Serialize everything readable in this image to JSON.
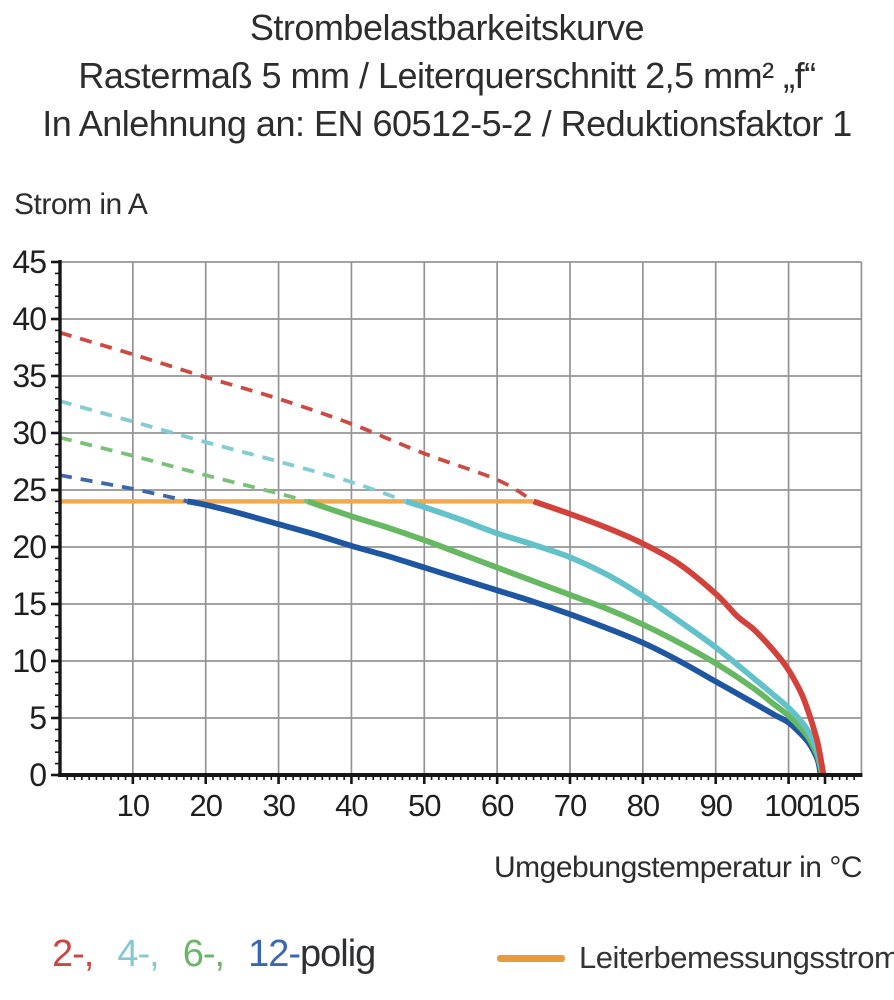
{
  "chart_data": {
    "type": "line",
    "title_lines": [
      "Strombelastbarkeitskurve",
      "Rastermaß 5 mm / Leiterquerschnitt 2,5 mm² „f“",
      "In Anlehnung an: EN 60512-5-2 / Reduktionsfaktor 1"
    ],
    "ylabel": "Strom in A",
    "xlabel": "Umgebungstemperatur in °C",
    "xlim": [
      0,
      110
    ],
    "ylim": [
      0,
      45
    ],
    "xticks": [
      10,
      20,
      30,
      40,
      50,
      60,
      70,
      80,
      90,
      100,
      105
    ],
    "yticks": [
      0,
      5,
      10,
      15,
      20,
      25,
      30,
      35,
      40,
      45
    ],
    "grid_x": [
      10,
      20,
      30,
      40,
      50,
      60,
      70,
      80,
      90,
      100,
      110
    ],
    "grid_y": [
      5,
      10,
      15,
      20,
      25,
      30,
      35,
      40,
      45
    ],
    "grid": true,
    "legend_position": "bottom",
    "colors": {
      "grid": "#949494",
      "axis": "#161616",
      "text": "#1f1f1f"
    },
    "rated_current": {
      "label": "Leiterbemessungsstrom",
      "value": 24,
      "x_start": 0,
      "x_end": 65,
      "color": "#f2a94b",
      "legend_swatch_color": "#e99b3c"
    },
    "series": [
      {
        "name": "2-polig",
        "legend_text": "2-,",
        "legend_color": "#cc4540",
        "color": "#d2423a",
        "dash_color": "#cb4a44",
        "dashed": [
          [
            0,
            38.8
          ],
          [
            10,
            36.9
          ],
          [
            20,
            34.9
          ],
          [
            30,
            33.0
          ],
          [
            40,
            30.8
          ],
          [
            50,
            28.2
          ],
          [
            60,
            25.9
          ],
          [
            65,
            24
          ]
        ],
        "solid": [
          [
            65,
            24
          ],
          [
            70,
            22.9
          ],
          [
            75,
            21.7
          ],
          [
            80,
            20.3
          ],
          [
            85,
            18.5
          ],
          [
            90,
            15.9
          ],
          [
            93,
            13.9
          ],
          [
            95,
            12.9
          ],
          [
            97,
            11.6
          ],
          [
            99,
            10.1
          ],
          [
            100,
            9.2
          ],
          [
            101,
            8.1
          ],
          [
            102,
            6.8
          ],
          [
            103,
            5.0
          ],
          [
            104,
            2.8
          ],
          [
            104.8,
            0
          ]
        ]
      },
      {
        "name": "4-polig",
        "legend_text": "4-,",
        "legend_color": "#85c8d2",
        "color": "#63c1c9",
        "dash_color": "#83ccd4",
        "dashed": [
          [
            0,
            32.8
          ],
          [
            10,
            31.0
          ],
          [
            20,
            29.2
          ],
          [
            30,
            27.5
          ],
          [
            40,
            25.7
          ],
          [
            47.5,
            24
          ]
        ],
        "solid": [
          [
            47.5,
            24
          ],
          [
            50,
            23.5
          ],
          [
            55,
            22.4
          ],
          [
            60,
            21.2
          ],
          [
            65,
            20.2
          ],
          [
            70,
            19.1
          ],
          [
            75,
            17.6
          ],
          [
            80,
            15.7
          ],
          [
            85,
            13.5
          ],
          [
            90,
            11.2
          ],
          [
            95,
            8.6
          ],
          [
            98,
            7.0
          ],
          [
            100,
            5.9
          ],
          [
            102,
            4.5
          ],
          [
            103,
            3.5
          ],
          [
            104,
            2.0
          ],
          [
            104.7,
            0
          ]
        ]
      },
      {
        "name": "6-polig",
        "legend_text": "6-,",
        "legend_color": "#6db46a",
        "color": "#66b962",
        "dash_color": "#7bc078",
        "dashed": [
          [
            0,
            29.6
          ],
          [
            10,
            28.0
          ],
          [
            20,
            26.3
          ],
          [
            30,
            24.7
          ],
          [
            34,
            24
          ]
        ],
        "solid": [
          [
            34,
            24
          ],
          [
            40,
            22.7
          ],
          [
            45,
            21.7
          ],
          [
            50,
            20.6
          ],
          [
            55,
            19.4
          ],
          [
            60,
            18.2
          ],
          [
            65,
            17.0
          ],
          [
            70,
            15.8
          ],
          [
            75,
            14.6
          ],
          [
            80,
            13.2
          ],
          [
            85,
            11.6
          ],
          [
            90,
            9.8
          ],
          [
            95,
            7.7
          ],
          [
            98,
            6.2
          ],
          [
            100,
            5.2
          ],
          [
            102,
            3.9
          ],
          [
            103,
            3.0
          ],
          [
            104,
            1.6
          ],
          [
            104.6,
            0
          ]
        ]
      },
      {
        "name": "12-polig",
        "legend_text": "12-",
        "legend_color": "#3a68b0",
        "color": "#1e56a2",
        "dash_color": "#3e67ac",
        "dashed": [
          [
            0,
            26.3
          ],
          [
            5,
            25.7
          ],
          [
            10,
            25.1
          ],
          [
            15,
            24.4
          ],
          [
            17.5,
            24
          ]
        ],
        "solid": [
          [
            17.5,
            24
          ],
          [
            20,
            23.7
          ],
          [
            25,
            22.9
          ],
          [
            30,
            22.0
          ],
          [
            35,
            21.1
          ],
          [
            40,
            20.1
          ],
          [
            45,
            19.2
          ],
          [
            50,
            18.2
          ],
          [
            55,
            17.2
          ],
          [
            60,
            16.2
          ],
          [
            65,
            15.2
          ],
          [
            70,
            14.1
          ],
          [
            75,
            12.9
          ],
          [
            80,
            11.6
          ],
          [
            85,
            10.0
          ],
          [
            90,
            8.2
          ],
          [
            95,
            6.4
          ],
          [
            98,
            5.3
          ],
          [
            100,
            4.6
          ],
          [
            102,
            3.4
          ],
          [
            103,
            2.6
          ],
          [
            104,
            1.3
          ],
          [
            104.4,
            0
          ]
        ]
      }
    ],
    "legend": {
      "pole_suffix": "polig",
      "pole_suffix_color": "#2f3033"
    }
  }
}
